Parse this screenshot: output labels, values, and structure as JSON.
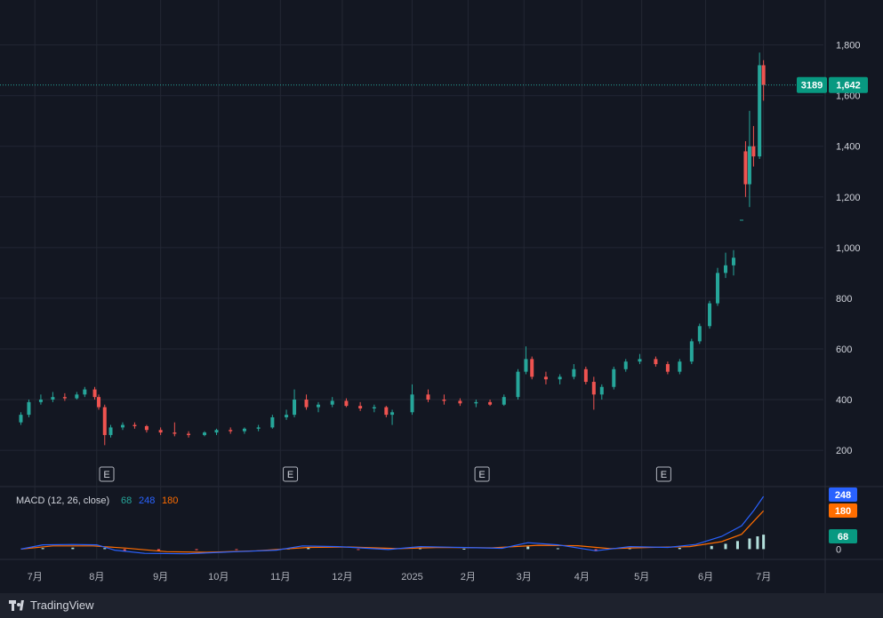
{
  "chart_data": {
    "type": "candlestick",
    "price": {
      "y_ticks": [
        200,
        400,
        600,
        800,
        1000,
        1200,
        1400,
        1600,
        1800
      ],
      "y_tick_labels": [
        "200",
        "400",
        "600",
        "800",
        "1,000",
        "1,200",
        "1,400",
        "1,600",
        "1,800"
      ],
      "ylim": [
        60,
        1960
      ],
      "last_price": 1642,
      "last_price_label": "1,642",
      "symbol_badge": "3189",
      "earnings_marker": "E",
      "earnings_dates": [
        "2024-08-06",
        "2024-11-06",
        "2025-02-10",
        "2025-05-12"
      ],
      "candles": [
        [
          "2024-06-24",
          310,
          350,
          300,
          340
        ],
        [
          "2024-06-28",
          340,
          400,
          330,
          390
        ],
        [
          "2024-07-04",
          390,
          420,
          380,
          400
        ],
        [
          "2024-07-10",
          400,
          430,
          390,
          410
        ],
        [
          "2024-07-16",
          410,
          425,
          395,
          405
        ],
        [
          "2024-07-22",
          405,
          430,
          400,
          420
        ],
        [
          "2024-07-26",
          420,
          450,
          410,
          440
        ],
        [
          "2024-07-31",
          440,
          450,
          400,
          410
        ],
        [
          "2024-08-02",
          410,
          420,
          360,
          370
        ],
        [
          "2024-08-05",
          370,
          380,
          220,
          260
        ],
        [
          "2024-08-08",
          260,
          300,
          250,
          290
        ],
        [
          "2024-08-14",
          290,
          310,
          280,
          300
        ],
        [
          "2024-08-20",
          300,
          310,
          285,
          295
        ],
        [
          "2024-08-26",
          295,
          300,
          270,
          280
        ],
        [
          "2024-09-02",
          280,
          290,
          260,
          270
        ],
        [
          "2024-09-09",
          270,
          310,
          255,
          265
        ],
        [
          "2024-09-16",
          265,
          275,
          250,
          260
        ],
        [
          "2024-09-24",
          260,
          275,
          255,
          270
        ],
        [
          "2024-09-30",
          270,
          285,
          260,
          280
        ],
        [
          "2024-10-07",
          280,
          290,
          265,
          275
        ],
        [
          "2024-10-14",
          275,
          290,
          265,
          285
        ],
        [
          "2024-10-21",
          285,
          300,
          275,
          290
        ],
        [
          "2024-10-28",
          290,
          340,
          285,
          330
        ],
        [
          "2024-11-04",
          330,
          360,
          320,
          340
        ],
        [
          "2024-11-08",
          340,
          440,
          330,
          400
        ],
        [
          "2024-11-14",
          400,
          420,
          360,
          370
        ],
        [
          "2024-11-20",
          370,
          390,
          350,
          380
        ],
        [
          "2024-11-27",
          380,
          410,
          370,
          395
        ],
        [
          "2024-12-04",
          395,
          405,
          370,
          375
        ],
        [
          "2024-12-11",
          375,
          390,
          355,
          365
        ],
        [
          "2024-12-18",
          365,
          380,
          350,
          370
        ],
        [
          "2024-12-24",
          370,
          375,
          330,
          340
        ],
        [
          "2024-12-27",
          340,
          360,
          300,
          350
        ],
        [
          "2025-01-06",
          350,
          460,
          340,
          420
        ],
        [
          "2025-01-14",
          420,
          440,
          390,
          400
        ],
        [
          "2025-01-22",
          400,
          420,
          380,
          395
        ],
        [
          "2025-01-30",
          395,
          405,
          375,
          385
        ],
        [
          "2025-02-07",
          385,
          400,
          370,
          390
        ],
        [
          "2025-02-14",
          390,
          400,
          375,
          380
        ],
        [
          "2025-02-21",
          380,
          420,
          375,
          410
        ],
        [
          "2025-02-28",
          410,
          520,
          400,
          510
        ],
        [
          "2025-03-04",
          510,
          610,
          500,
          560
        ],
        [
          "2025-03-07",
          560,
          570,
          480,
          490
        ],
        [
          "2025-03-14",
          490,
          510,
          460,
          480
        ],
        [
          "2025-03-21",
          480,
          500,
          460,
          490
        ],
        [
          "2025-03-28",
          490,
          540,
          480,
          520
        ],
        [
          "2025-04-03",
          520,
          530,
          460,
          470
        ],
        [
          "2025-04-07",
          470,
          490,
          360,
          420
        ],
        [
          "2025-04-11",
          420,
          460,
          400,
          450
        ],
        [
          "2025-04-17",
          450,
          530,
          440,
          520
        ],
        [
          "2025-04-23",
          520,
          560,
          510,
          550
        ],
        [
          "2025-04-30",
          550,
          580,
          540,
          560
        ],
        [
          "2025-05-08",
          560,
          570,
          530,
          540
        ],
        [
          "2025-05-14",
          540,
          550,
          500,
          510
        ],
        [
          "2025-05-20",
          510,
          560,
          500,
          550
        ],
        [
          "2025-05-26",
          550,
          640,
          540,
          630
        ],
        [
          "2025-05-30",
          630,
          700,
          620,
          690
        ],
        [
          "2025-06-04",
          690,
          790,
          680,
          780
        ],
        [
          "2025-06-08",
          780,
          920,
          770,
          900
        ],
        [
          "2025-06-12",
          900,
          980,
          880,
          930
        ],
        [
          "2025-06-16",
          930,
          990,
          890,
          960
        ],
        [
          "2025-06-20",
          1110,
          1110,
          1110,
          1110
        ],
        [
          "2025-06-22",
          1380,
          1420,
          1200,
          1250
        ],
        [
          "2025-06-24",
          1250,
          1540,
          1160,
          1400
        ],
        [
          "2025-06-26",
          1400,
          1480,
          1320,
          1360
        ],
        [
          "2025-06-29",
          1360,
          1770,
          1350,
          1720
        ],
        [
          "2025-07-01",
          1720,
          1740,
          1580,
          1642
        ]
      ]
    },
    "x_axis": {
      "ticks": [
        {
          "label": "7月",
          "date": "2024-07-01"
        },
        {
          "label": "8月",
          "date": "2024-08-01"
        },
        {
          "label": "9月",
          "date": "2024-09-02"
        },
        {
          "label": "10月",
          "date": "2024-10-01"
        },
        {
          "label": "11月",
          "date": "2024-11-01"
        },
        {
          "label": "12月",
          "date": "2024-12-02"
        },
        {
          "label": "2025",
          "date": "2025-01-06"
        },
        {
          "label": "2月",
          "date": "2025-02-03"
        },
        {
          "label": "3月",
          "date": "2025-03-03"
        },
        {
          "label": "4月",
          "date": "2025-04-01"
        },
        {
          "label": "5月",
          "date": "2025-05-01"
        },
        {
          "label": "6月",
          "date": "2025-06-02"
        },
        {
          "label": "7月",
          "date": "2025-07-01"
        }
      ]
    },
    "macd": {
      "legend_label": "MACD (12, 26, close)",
      "params_text": [
        "68",
        "248",
        "180"
      ],
      "histogram_value": 68,
      "macd_value": 248,
      "signal_value": 180,
      "y_tick_labels": [
        "0"
      ],
      "ylim": [
        -40,
        290
      ],
      "macd_line": [
        [
          "2024-06-24",
          0
        ],
        [
          "2024-07-05",
          20
        ],
        [
          "2024-07-20",
          22
        ],
        [
          "2024-08-01",
          20
        ],
        [
          "2024-08-10",
          -5
        ],
        [
          "2024-08-25",
          -20
        ],
        [
          "2024-09-15",
          -22
        ],
        [
          "2024-10-10",
          -12
        ],
        [
          "2024-10-30",
          -5
        ],
        [
          "2024-11-12",
          15
        ],
        [
          "2024-11-30",
          12
        ],
        [
          "2024-12-25",
          -2
        ],
        [
          "2025-01-10",
          12
        ],
        [
          "2025-01-30",
          8
        ],
        [
          "2025-02-20",
          4
        ],
        [
          "2025-03-05",
          30
        ],
        [
          "2025-03-20",
          20
        ],
        [
          "2025-04-08",
          -8
        ],
        [
          "2025-04-25",
          12
        ],
        [
          "2025-05-14",
          8
        ],
        [
          "2025-05-28",
          22
        ],
        [
          "2025-06-10",
          60
        ],
        [
          "2025-06-20",
          110
        ],
        [
          "2025-06-26",
          180
        ],
        [
          "2025-07-01",
          248
        ]
      ],
      "signal_line": [
        [
          "2024-06-24",
          0
        ],
        [
          "2024-07-10",
          15
        ],
        [
          "2024-07-30",
          15
        ],
        [
          "2024-08-15",
          5
        ],
        [
          "2024-09-05",
          -12
        ],
        [
          "2024-09-25",
          -15
        ],
        [
          "2024-10-20",
          -8
        ],
        [
          "2024-11-15",
          8
        ],
        [
          "2024-12-05",
          10
        ],
        [
          "2024-12-30",
          2
        ],
        [
          "2025-01-20",
          8
        ],
        [
          "2025-02-15",
          6
        ],
        [
          "2025-03-10",
          18
        ],
        [
          "2025-03-30",
          16
        ],
        [
          "2025-04-15",
          2
        ],
        [
          "2025-05-05",
          8
        ],
        [
          "2025-05-25",
          12
        ],
        [
          "2025-06-10",
          35
        ],
        [
          "2025-06-20",
          70
        ],
        [
          "2025-06-26",
          130
        ],
        [
          "2025-07-01",
          180
        ]
      ],
      "histogram": [
        [
          "2024-07-05",
          5
        ],
        [
          "2024-07-20",
          7
        ],
        [
          "2024-08-05",
          5
        ],
        [
          "2024-08-15",
          -10
        ],
        [
          "2024-09-01",
          -8
        ],
        [
          "2024-09-20",
          -5
        ],
        [
          "2024-10-10",
          -3
        ],
        [
          "2024-11-05",
          3
        ],
        [
          "2024-11-15",
          7
        ],
        [
          "2024-12-10",
          -2
        ],
        [
          "2025-01-10",
          4
        ],
        [
          "2025-02-01",
          2
        ],
        [
          "2025-03-05",
          12
        ],
        [
          "2025-03-20",
          4
        ],
        [
          "2025-04-08",
          -10
        ],
        [
          "2025-04-25",
          4
        ],
        [
          "2025-05-20",
          6
        ],
        [
          "2025-06-05",
          15
        ],
        [
          "2025-06-12",
          25
        ],
        [
          "2025-06-18",
          38
        ],
        [
          "2025-06-24",
          50
        ],
        [
          "2025-06-28",
          60
        ],
        [
          "2025-07-01",
          68
        ]
      ]
    }
  },
  "colors": {
    "background": "#131722",
    "grid": "#232734",
    "up": "#26a69a",
    "down": "#ef5350",
    "macd": "#2962ff",
    "signal": "#ff6d00",
    "histogram": "#b2dfdb",
    "badge": "#089981"
  },
  "branding": {
    "logo_text": "TradingView"
  }
}
